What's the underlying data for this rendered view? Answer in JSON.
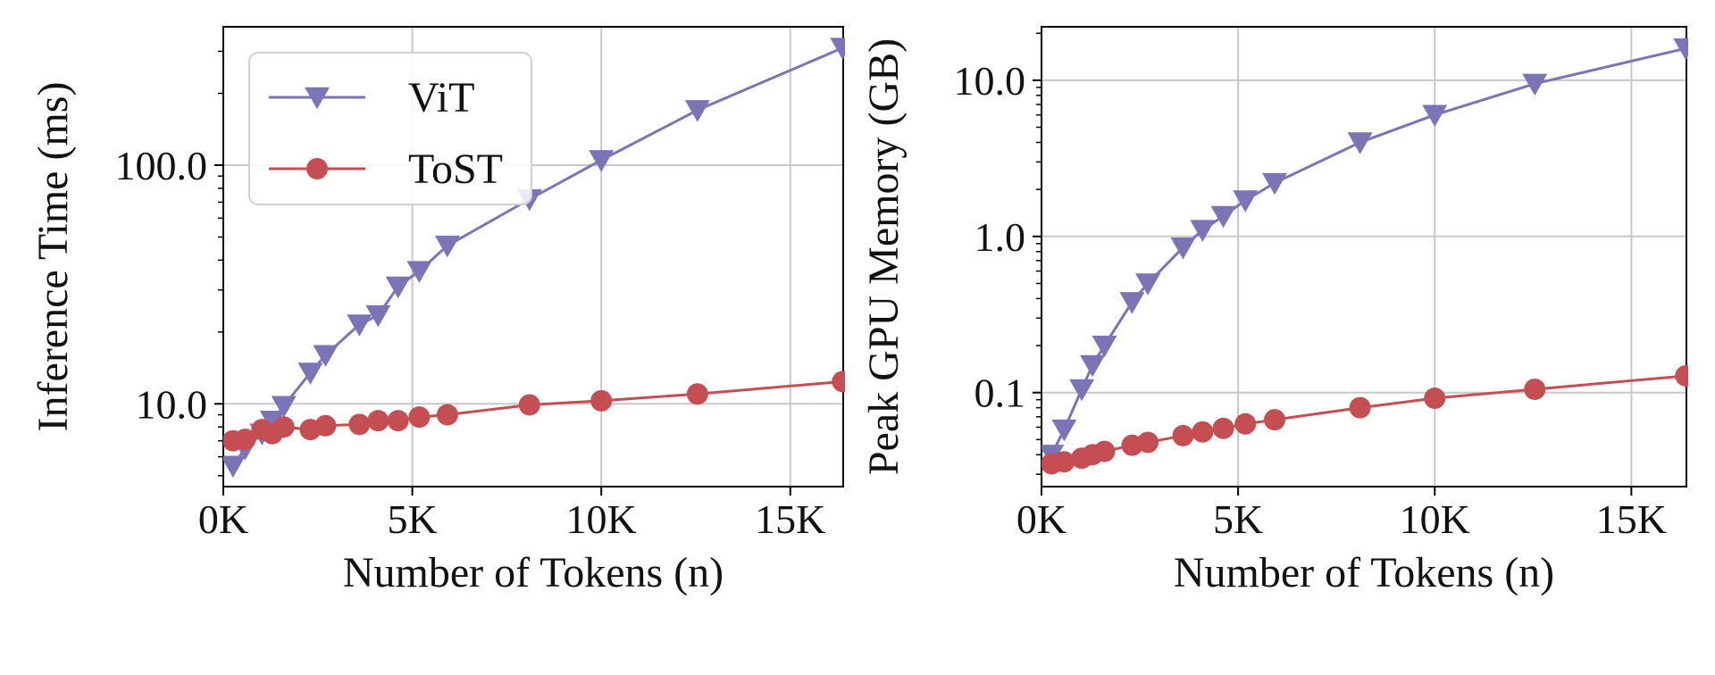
{
  "chart_data": [
    {
      "type": "line",
      "yscale": "log",
      "xlabel": "Number of Tokens (n)",
      "ylabel": "Inference Time (ms)",
      "xlim": [
        0,
        16400
      ],
      "ylim": [
        4.5,
        380
      ],
      "xticks": [
        0,
        5000,
        10000,
        15000
      ],
      "xtick_labels": [
        "0K",
        "5K",
        "10K",
        "15K"
      ],
      "yticks": [
        10,
        100
      ],
      "ytick_labels": [
        "10.0",
        "100.0"
      ],
      "grid": true,
      "legend": "top-left",
      "series": [
        {
          "name": "ViT",
          "color": "#7b74b6",
          "marker": "triangle-down",
          "x": [
            256,
            576,
            1024,
            1296,
            1600,
            2304,
            2704,
            3600,
            4096,
            4624,
            5184,
            5929,
            8100,
            10000,
            12544,
            16384
          ],
          "y": [
            5.5,
            6.5,
            7.5,
            8.5,
            9.8,
            13.5,
            16,
            21.5,
            23.5,
            31,
            36,
            46,
            72,
            105,
            170,
            310
          ]
        },
        {
          "name": "ToST",
          "color": "#c44e52",
          "marker": "circle",
          "x": [
            256,
            576,
            1024,
            1296,
            1600,
            2304,
            2704,
            3600,
            4096,
            4624,
            5184,
            5929,
            8100,
            10000,
            12544,
            16384
          ],
          "y": [
            7.0,
            7.1,
            7.8,
            7.5,
            8.0,
            7.8,
            8.1,
            8.2,
            8.5,
            8.5,
            8.8,
            9.0,
            9.9,
            10.3,
            11.0,
            12.4
          ]
        }
      ]
    },
    {
      "type": "line",
      "yscale": "log",
      "xlabel": "Number of Tokens (n)",
      "ylabel": "Peak GPU Memory (GB)",
      "xlim": [
        0,
        16400
      ],
      "ylim": [
        0.025,
        22
      ],
      "xticks": [
        0,
        5000,
        10000,
        15000
      ],
      "xtick_labels": [
        "0K",
        "5K",
        "10K",
        "15K"
      ],
      "yticks": [
        0.1,
        1,
        10
      ],
      "ytick_labels": [
        "0.1",
        "1.0",
        "10.0"
      ],
      "grid": true,
      "series": [
        {
          "name": "ViT",
          "color": "#7b74b6",
          "marker": "triangle-down",
          "x": [
            256,
            576,
            1024,
            1296,
            1600,
            2304,
            2704,
            3600,
            4096,
            4624,
            5184,
            5929,
            8100,
            10000,
            12544,
            16384
          ],
          "y": [
            0.04,
            0.058,
            0.105,
            0.15,
            0.2,
            0.38,
            0.5,
            0.85,
            1.1,
            1.35,
            1.7,
            2.2,
            4.0,
            6.0,
            9.5,
            16.0
          ]
        },
        {
          "name": "ToST",
          "color": "#c44e52",
          "marker": "circle",
          "x": [
            256,
            576,
            1024,
            1296,
            1600,
            2304,
            2704,
            3600,
            4096,
            4624,
            5184,
            5929,
            8100,
            10000,
            12544,
            16384
          ],
          "y": [
            0.035,
            0.036,
            0.038,
            0.04,
            0.042,
            0.046,
            0.048,
            0.053,
            0.056,
            0.059,
            0.063,
            0.067,
            0.08,
            0.092,
            0.105,
            0.128
          ]
        }
      ]
    }
  ]
}
